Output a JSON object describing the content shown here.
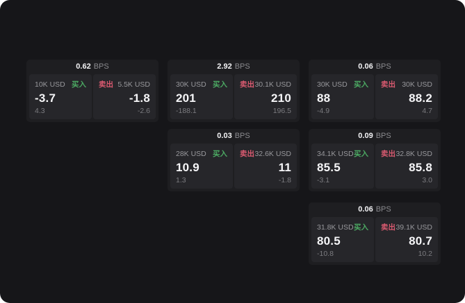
{
  "labels": {
    "unit": "BPS",
    "buy": "买入",
    "sell": "卖出"
  },
  "colors": {
    "buy": "#4caa63",
    "sell": "#d95a70",
    "background": "#161619",
    "card": "#1e1e21",
    "panel": "#26262a",
    "text_primary": "#f5f5f7",
    "text_secondary": "#98989c",
    "text_muted": "#7c7c80"
  },
  "cards": [
    {
      "bps": "0.62",
      "buy": {
        "amount": "10K USD",
        "value": "-3.7",
        "sub": "4.3"
      },
      "sell": {
        "amount": "5.5K USD",
        "value": "-1.8",
        "sub": "-2.6"
      }
    },
    {
      "bps": "2.92",
      "buy": {
        "amount": "30K USD",
        "value": "201",
        "sub": "-188.1"
      },
      "sell": {
        "amount": "30.1K USD",
        "value": "210",
        "sub": "196.5"
      }
    },
    {
      "bps": "0.06",
      "buy": {
        "amount": "30K USD",
        "value": "88",
        "sub": "-4.9"
      },
      "sell": {
        "amount": "30K USD",
        "value": "88.2",
        "sub": "4.7"
      }
    },
    {
      "bps": "0.03",
      "buy": {
        "amount": "28K USD",
        "value": "10.9",
        "sub": "1.3"
      },
      "sell": {
        "amount": "32.6K USD",
        "value": "11",
        "sub": "-1.8"
      }
    },
    {
      "bps": "0.09",
      "buy": {
        "amount": "34.1K USD",
        "value": "85.5",
        "sub": "-3.1"
      },
      "sell": {
        "amount": "32.8K USD",
        "value": "85.8",
        "sub": "3.0"
      }
    },
    {
      "bps": "0.06",
      "buy": {
        "amount": "31.8K USD",
        "value": "80.5",
        "sub": "-10.8"
      },
      "sell": {
        "amount": "39.1K USD",
        "value": "80.7",
        "sub": "10.2"
      }
    }
  ]
}
